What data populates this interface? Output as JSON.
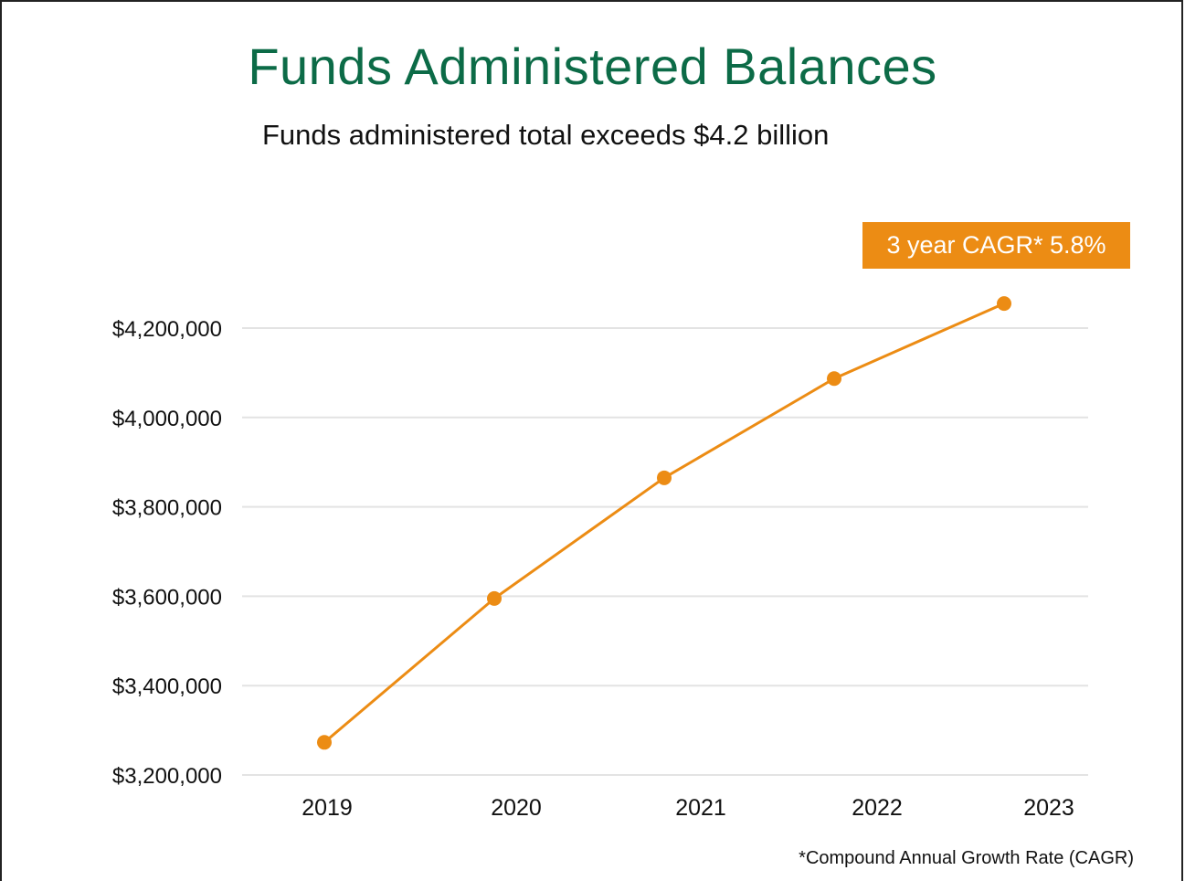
{
  "title": "Funds Administered Balances",
  "subtitle": "Funds administered total exceeds $4.2 billion",
  "badge": "3 year CAGR* 5.8%",
  "footnote": "*Compound Annual Growth Rate (CAGR)",
  "colors": {
    "title": "#0c6b47",
    "line": "#ec8c14",
    "badge": "#ec8c14",
    "grid": "#e3e3e3"
  },
  "chart_data": {
    "type": "line",
    "x": [
      "2019",
      "2020",
      "2021",
      "2022",
      "2023"
    ],
    "series": [
      {
        "values": [
          3273000,
          3595000,
          3865000,
          4087000,
          4255000
        ]
      }
    ],
    "yticks": [
      3200000,
      3400000,
      3600000,
      3800000,
      4000000,
      4200000
    ],
    "ytick_labels": [
      "$3,200,000",
      "$3,400,000",
      "$3,600,000",
      "$3,800,000",
      "$4,000,000",
      "$4,200,000"
    ],
    "ylim": [
      3200000,
      4200000
    ],
    "grid": true,
    "legend": "none"
  }
}
